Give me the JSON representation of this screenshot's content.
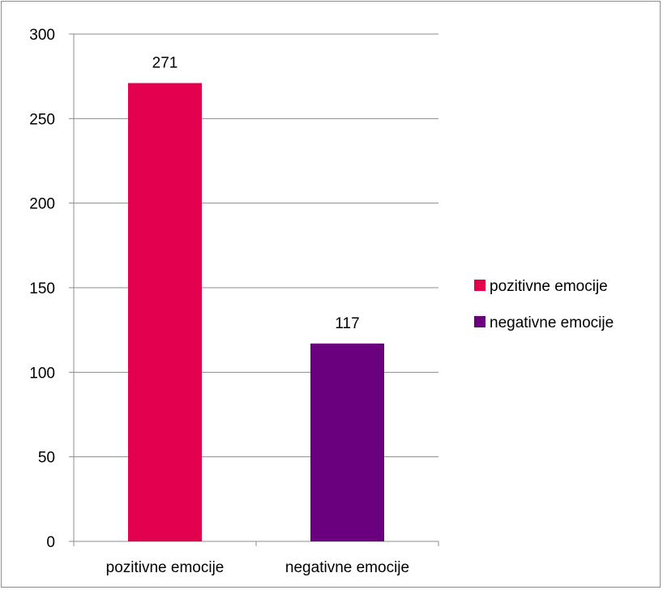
{
  "chart_data": {
    "type": "bar",
    "title": "",
    "xlabel": "",
    "ylabel": "",
    "categories": [
      "pozitivne emocije",
      "negativne emocije"
    ],
    "values": [
      271,
      117
    ],
    "colors": [
      "#e3004f",
      "#6a007e"
    ],
    "data_labels": [
      "271",
      "117"
    ],
    "ylim": [
      0,
      300
    ],
    "yticks": [
      0,
      50,
      100,
      150,
      200,
      250,
      300
    ],
    "grid": true,
    "legend": {
      "position": "right",
      "entries": [
        {
          "label": "pozitivne emocije",
          "color": "#e3004f"
        },
        {
          "label": "negativne emocije",
          "color": "#6a007e"
        }
      ]
    }
  },
  "styles": {
    "grid_color": "#8c8c8c",
    "axis_color": "#8c8c8c"
  }
}
